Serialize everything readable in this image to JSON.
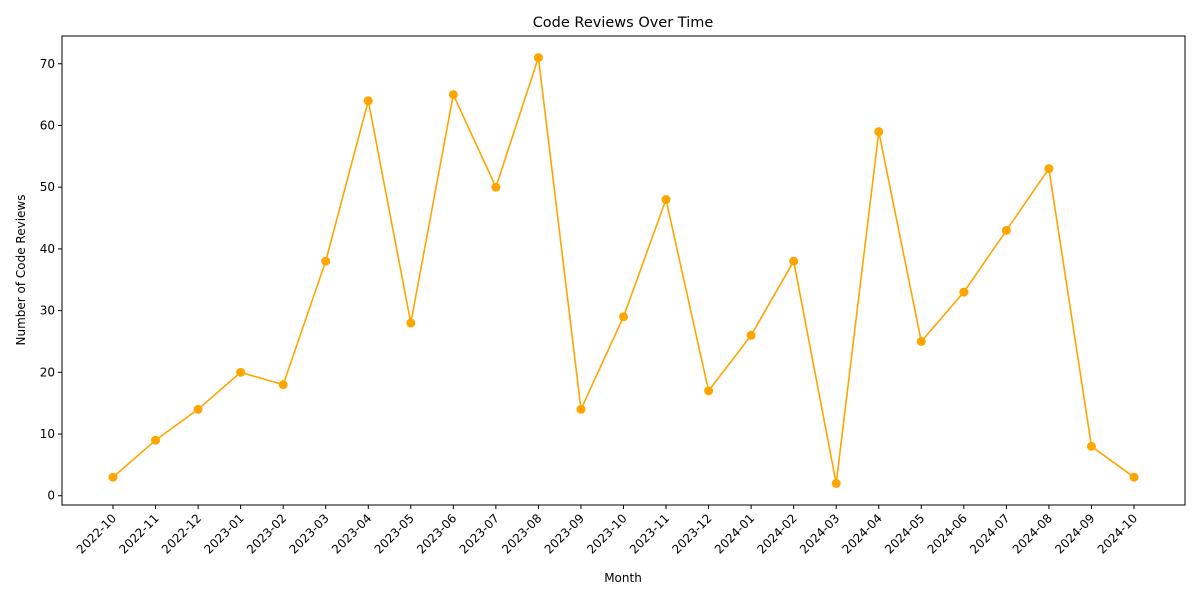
{
  "chart_data": {
    "type": "line",
    "title": "Code Reviews Over Time",
    "xlabel": "Month",
    "ylabel": "Number of Code Reviews",
    "categories": [
      "2022-10",
      "2022-11",
      "2022-12",
      "2023-01",
      "2023-02",
      "2023-03",
      "2023-04",
      "2023-05",
      "2023-06",
      "2023-07",
      "2023-08",
      "2023-09",
      "2023-10",
      "2023-11",
      "2023-12",
      "2024-01",
      "2024-02",
      "2024-03",
      "2024-04",
      "2024-05",
      "2024-06",
      "2024-07",
      "2024-08",
      "2024-09",
      "2024-10"
    ],
    "series": [
      {
        "values": [
          3,
          9,
          14,
          20,
          18,
          38,
          64,
          28,
          65,
          50,
          71,
          14,
          29,
          48,
          17,
          26,
          38,
          2,
          59,
          25,
          33,
          43,
          53,
          8,
          3
        ],
        "color": "#ffa500",
        "marker": "circle"
      }
    ],
    "ylim": [
      -1.5,
      74.5
    ],
    "yticks": [
      0,
      10,
      20,
      30,
      40,
      50,
      60,
      70
    ],
    "grid": false,
    "legend": "none"
  }
}
